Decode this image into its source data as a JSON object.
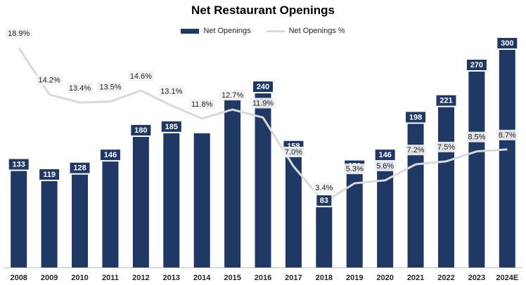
{
  "chart_data": {
    "type": "bar",
    "title": "Net Restaurant Openings",
    "categories": [
      "2008",
      "2009",
      "2010",
      "2011",
      "2012",
      "2013",
      "2014",
      "2015",
      "2016",
      "2017",
      "2018",
      "2019",
      "2020",
      "2021",
      "2022",
      "2023",
      "2024E"
    ],
    "series": [
      {
        "name": "Net Openings",
        "type": "bar",
        "color": "#1F3864",
        "values": [
          133,
          119,
          128,
          146,
          180,
          185,
          185,
          232,
          240,
          158,
          83,
          131,
          146,
          198,
          221,
          270,
          300
        ],
        "labels": [
          "133",
          "119",
          "128",
          "146",
          "180",
          "185",
          "",
          "",
          "240",
          "158",
          "83",
          "131",
          "146",
          "198",
          "221",
          "270",
          "300"
        ]
      },
      {
        "name": "Net Openings %",
        "type": "line",
        "color": "#D9D9D9",
        "values": [
          18.9,
          14.2,
          13.4,
          13.5,
          14.6,
          13.1,
          11.8,
          12.7,
          11.9,
          7.0,
          3.4,
          5.3,
          5.6,
          7.2,
          7.5,
          8.5,
          8.7
        ],
        "labels": [
          "18.9%",
          "14.2%",
          "13.4%",
          "13.5%",
          "14.6%",
          "13.1%",
          "11.8%",
          "12.7%",
          "11.9%",
          "7.0%",
          "3.4%",
          "5.3%",
          "5.6%",
          "7.2%",
          "7.5%",
          "8.5%",
          "8.7%"
        ]
      }
    ],
    "grid": false,
    "legend": "top-center",
    "xlabel": "",
    "ylabel": ""
  }
}
